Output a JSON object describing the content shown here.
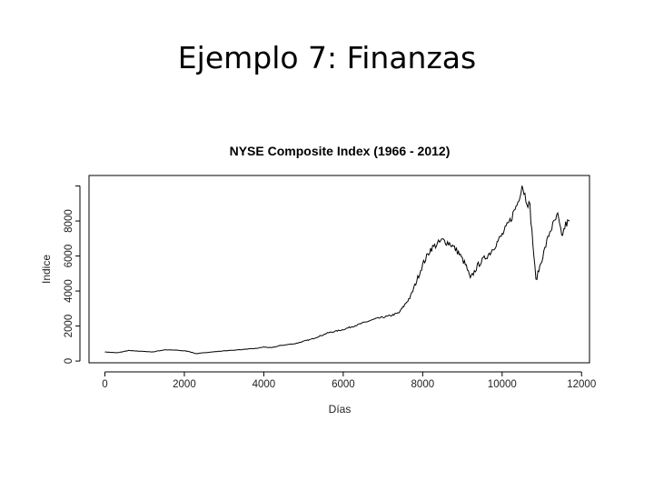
{
  "slide": {
    "title": "Ejemplo 7: Finanzas"
  },
  "chart_data": {
    "type": "line",
    "title": "NYSE Composite Index (1966 - 2012)",
    "xlabel": "Días",
    "ylabel": "Indice",
    "xlim": [
      -400,
      12200
    ],
    "ylim": [
      -100,
      10600
    ],
    "xticks": [
      0,
      2000,
      4000,
      6000,
      8000,
      10000,
      12000
    ],
    "yticks": [
      0,
      2000,
      4000,
      6000,
      8000
    ],
    "grid": false,
    "legend": "none",
    "series": [
      {
        "color": "#000000",
        "x": [
          0,
          300,
          600,
          900,
          1200,
          1500,
          1800,
          2100,
          2300,
          2600,
          3000,
          3400,
          3800,
          4000,
          4200,
          4400,
          4800,
          5200,
          5500,
          5600,
          6000,
          6400,
          6800,
          7200,
          7400,
          7700,
          8000,
          8200,
          8500,
          8700,
          8900,
          9100,
          9200,
          9400,
          9700,
          10000,
          10200,
          10400,
          10500,
          10600,
          10700,
          10800,
          10850,
          11000,
          11200,
          11400,
          11500,
          11600,
          11700
        ],
        "y": [
          520,
          470,
          600,
          560,
          520,
          640,
          620,
          560,
          420,
          500,
          580,
          650,
          720,
          800,
          760,
          880,
          1000,
          1250,
          1500,
          1600,
          1800,
          2100,
          2400,
          2600,
          2750,
          3700,
          5500,
          6400,
          6900,
          6700,
          6200,
          5400,
          4700,
          5500,
          6200,
          7200,
          8000,
          9100,
          10100,
          9300,
          8800,
          6000,
          4600,
          5800,
          7400,
          8300,
          7100,
          7800,
          8000
        ]
      }
    ]
  }
}
